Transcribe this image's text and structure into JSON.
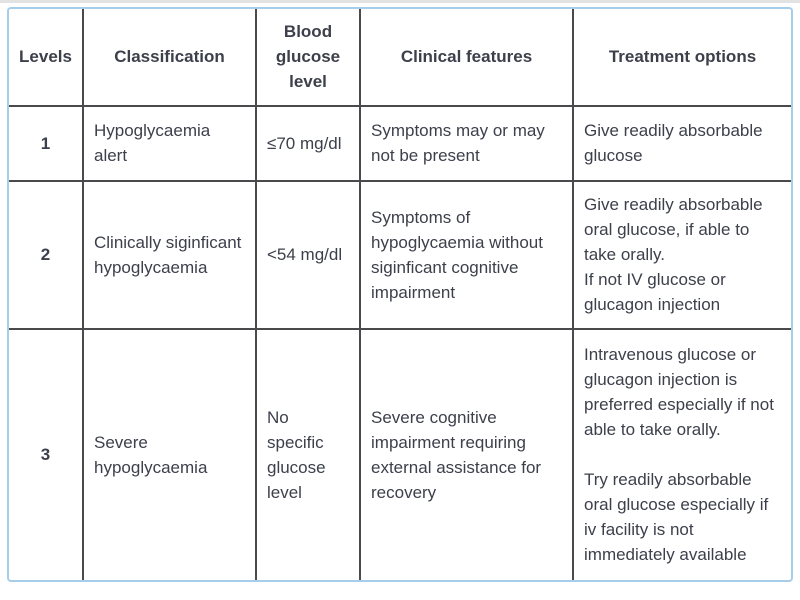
{
  "table": {
    "columns": [
      "Levels",
      "Classification",
      "Blood glucose level",
      "Clinical features",
      "Treatment options"
    ],
    "rows": [
      {
        "level": "1",
        "classification": "Hypoglycaemia alert",
        "blood_glucose": "≤70 mg/dl",
        "clinical_features": "Symptoms may or may not be present",
        "treatment_lines": [
          "Give readily absorbable glucose"
        ]
      },
      {
        "level": "2",
        "classification": "Clinically siginficant hypoglycaemia",
        "blood_glucose": "<54 mg/dl",
        "clinical_features": "Symptoms of hypoglycaemia without siginficant cognitive impairment",
        "treatment_lines": [
          "Give readily absorbable oral glucose, if able to take orally.",
          "If not IV glucose or glucagon injection"
        ]
      },
      {
        "level": "3",
        "classification": "Severe hypoglycaemia",
        "blood_glucose": "No specific glucose level",
        "clinical_features": "Severe cognitive impairment requiring external assistance for recovery",
        "treatment_paragraphs": [
          "Intravenous glucose or glucagon injection is preferred especially if not able to take orally.",
          "Try readily absorbable oral glucose especially if iv facility is not immediately available"
        ]
      }
    ],
    "colors": {
      "outer_border": "#a6cdea",
      "grid_line": "#4a4a4d",
      "text": "#3d404b"
    }
  }
}
